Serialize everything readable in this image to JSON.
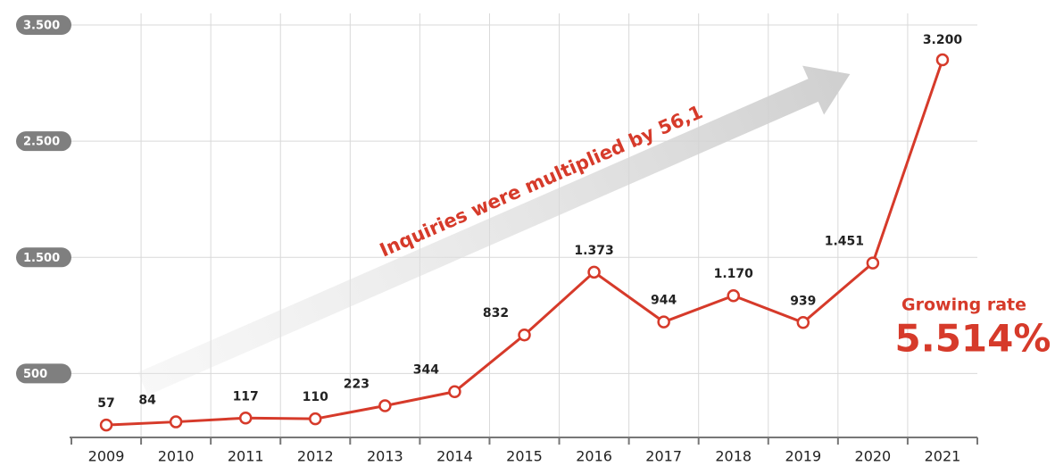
{
  "chart_data": {
    "type": "line",
    "categories": [
      "2009",
      "2010",
      "2011",
      "2012",
      "2013",
      "2014",
      "2015",
      "2016",
      "2017",
      "2018",
      "2019",
      "2020",
      "2021"
    ],
    "series": [
      {
        "color": "#d63a2a",
        "values": [
          57,
          84,
          117,
          110,
          223,
          344,
          832,
          1373,
          944,
          1170,
          939,
          1451,
          3200
        ],
        "value_labels": [
          "57",
          "84",
          "117",
          "110",
          "223",
          "344",
          "832",
          "1.373",
          "944",
          "1.170",
          "939",
          "1.451",
          "3.200"
        ]
      }
    ],
    "ylim": [
      -50,
      3600
    ],
    "yticks": [
      500,
      {
        "value": 1500,
        "label": "1.500"
      },
      {
        "value": 2500,
        "label": "2.500"
      },
      {
        "value": 3500,
        "label": "3.500"
      }
    ],
    "grid": true,
    "annotations": [
      "Inquiries were multiplied by 56,1",
      "Growing rate",
      "5.514%"
    ]
  }
}
